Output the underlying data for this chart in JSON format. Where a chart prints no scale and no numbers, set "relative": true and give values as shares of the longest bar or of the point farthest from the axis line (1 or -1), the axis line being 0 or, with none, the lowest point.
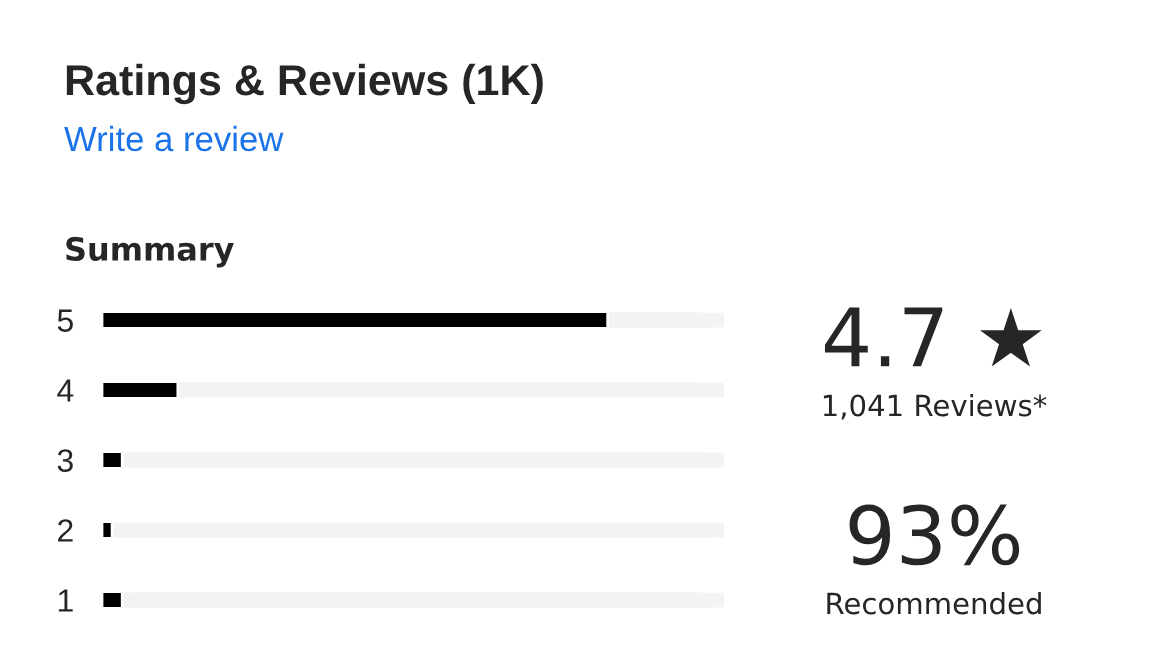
{
  "chart_data": {
    "type": "bar",
    "orientation": "horizontal",
    "relative": true,
    "title": "Ratings & Reviews (1K)",
    "subtitle": "Write a review",
    "categories": [
      "5",
      "4",
      "3",
      "2",
      "1"
    ],
    "series": [
      {
        "color": "#000000",
        "values": [
          1,
          0.15,
          0.04,
          0.02,
          0.04
        ]
      }
    ],
    "annotations": [
      "Summary",
      "4.7 ★",
      "1,041 Reviews*",
      "93%",
      "Recommended"
    ],
    "tick_labels": "y"
  }
}
